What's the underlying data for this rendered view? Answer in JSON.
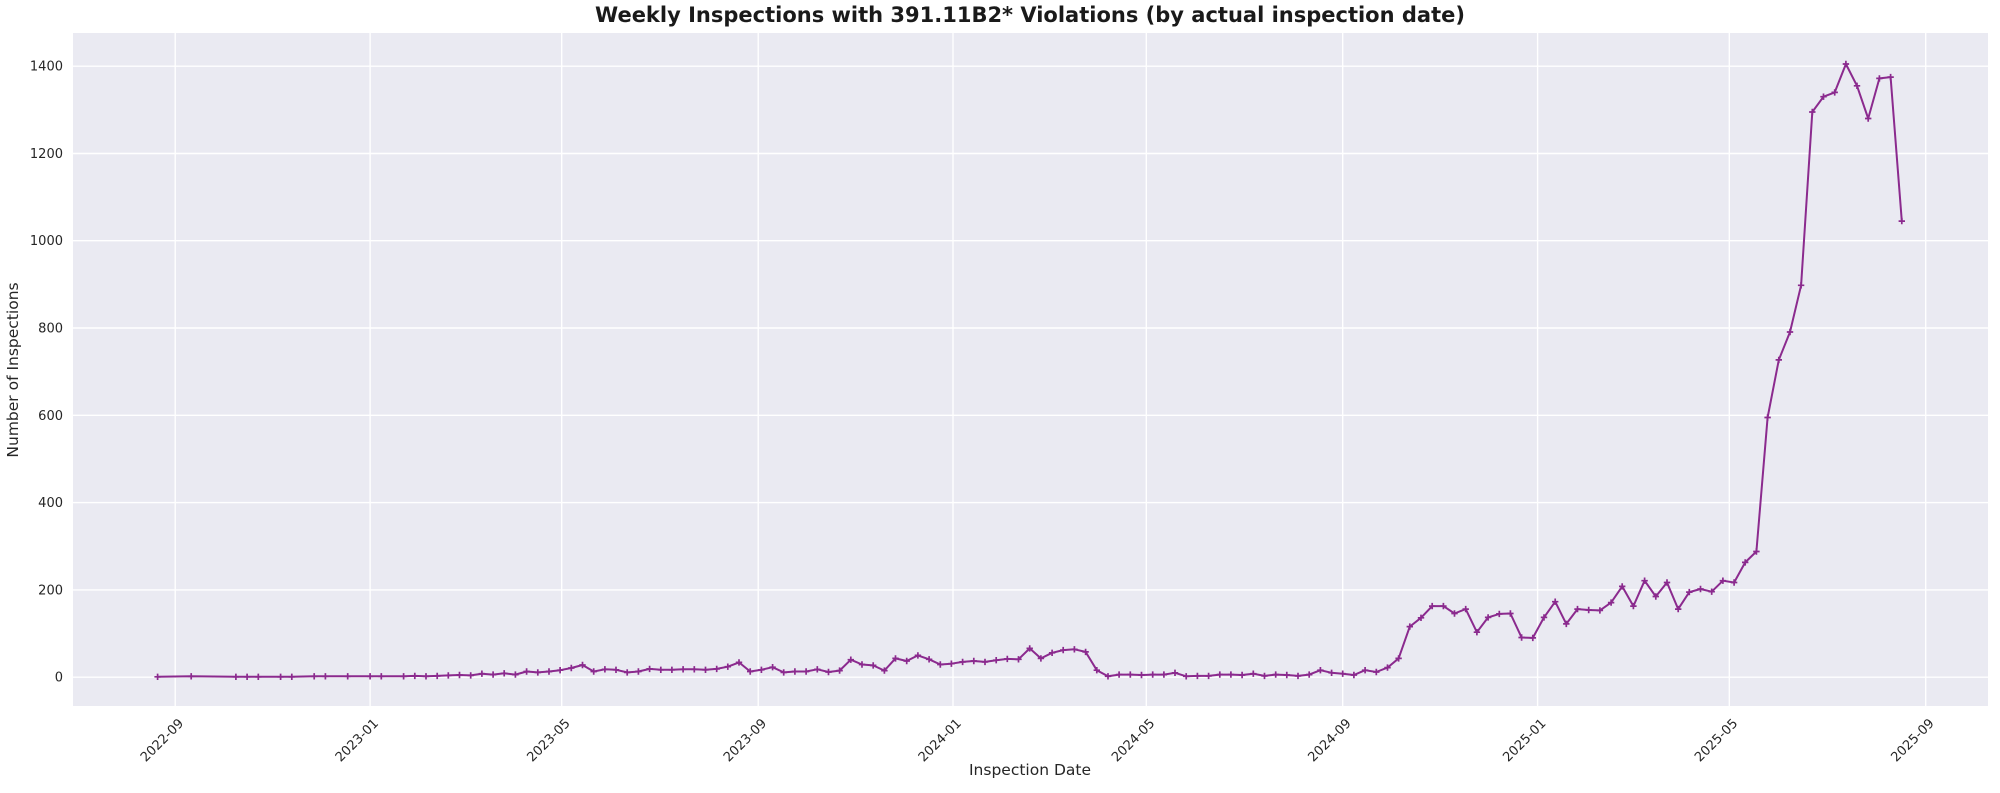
{
  "colors": {
    "figure_background": "#ffffff",
    "axes_background": "#eaeaf2",
    "gridline": "#ffffff",
    "line": "#8b2a8e",
    "marker": "#8b2a8e",
    "title_text": "#1a1a1a",
    "tick_text": "#262626"
  },
  "chart_data": {
    "type": "line",
    "title": "Weekly Inspections with 391.11B2* Violations (by actual inspection date)",
    "xlabel": "Inspection Date",
    "ylabel": "Number of Inspections",
    "grid": true,
    "legend": null,
    "marker": "plus",
    "xlim": [
      "2022-06-29",
      "2025-10-10"
    ],
    "ylim": [
      -66,
      1476
    ],
    "y_ticks": [
      0,
      200,
      400,
      600,
      800,
      1000,
      1200,
      1400
    ],
    "x_ticks": [
      {
        "date": "2022-09-01",
        "label": "2022-09"
      },
      {
        "date": "2023-01-01",
        "label": "2023-01"
      },
      {
        "date": "2023-05-01",
        "label": "2023-05"
      },
      {
        "date": "2023-09-01",
        "label": "2023-09"
      },
      {
        "date": "2024-01-01",
        "label": "2024-01"
      },
      {
        "date": "2024-05-01",
        "label": "2024-05"
      },
      {
        "date": "2024-09-01",
        "label": "2024-09"
      },
      {
        "date": "2025-01-01",
        "label": "2025-01"
      },
      {
        "date": "2025-05-01",
        "label": "2025-05"
      },
      {
        "date": "2025-09-01",
        "label": "2025-09"
      }
    ],
    "points": [
      [
        "2022-08-21",
        1
      ],
      [
        "2022-09-11",
        2
      ],
      [
        "2022-10-09",
        1
      ],
      [
        "2022-10-16",
        1
      ],
      [
        "2022-10-23",
        1
      ],
      [
        "2022-11-06",
        1
      ],
      [
        "2022-11-13",
        1
      ],
      [
        "2022-11-27",
        2
      ],
      [
        "2022-12-04",
        2
      ],
      [
        "2022-12-18",
        2
      ],
      [
        "2023-01-01",
        2
      ],
      [
        "2023-01-08",
        2
      ],
      [
        "2023-01-22",
        2
      ],
      [
        "2023-01-29",
        3
      ],
      [
        "2023-02-05",
        2
      ],
      [
        "2023-02-12",
        3
      ],
      [
        "2023-02-19",
        4
      ],
      [
        "2023-02-26",
        5
      ],
      [
        "2023-03-05",
        4
      ],
      [
        "2023-03-12",
        8
      ],
      [
        "2023-03-19",
        6
      ],
      [
        "2023-03-26",
        9
      ],
      [
        "2023-04-02",
        6
      ],
      [
        "2023-04-09",
        13
      ],
      [
        "2023-04-16",
        11
      ],
      [
        "2023-04-23",
        13
      ],
      [
        "2023-04-30",
        16
      ],
      [
        "2023-05-07",
        21
      ],
      [
        "2023-05-14",
        28
      ],
      [
        "2023-05-21",
        13
      ],
      [
        "2023-05-28",
        18
      ],
      [
        "2023-06-04",
        17
      ],
      [
        "2023-06-11",
        11
      ],
      [
        "2023-06-18",
        13
      ],
      [
        "2023-06-25",
        19
      ],
      [
        "2023-07-02",
        17
      ],
      [
        "2023-07-09",
        17
      ],
      [
        "2023-07-16",
        18
      ],
      [
        "2023-07-23",
        18
      ],
      [
        "2023-07-30",
        17
      ],
      [
        "2023-08-06",
        19
      ],
      [
        "2023-08-13",
        24
      ],
      [
        "2023-08-20",
        34
      ],
      [
        "2023-08-27",
        13
      ],
      [
        "2023-09-03",
        17
      ],
      [
        "2023-09-10",
        23
      ],
      [
        "2023-09-17",
        11
      ],
      [
        "2023-09-24",
        13
      ],
      [
        "2023-10-01",
        13
      ],
      [
        "2023-10-08",
        18
      ],
      [
        "2023-10-15",
        12
      ],
      [
        "2023-10-22",
        15
      ],
      [
        "2023-10-29",
        40
      ],
      [
        "2023-11-05",
        29
      ],
      [
        "2023-11-12",
        27
      ],
      [
        "2023-11-19",
        15
      ],
      [
        "2023-11-26",
        43
      ],
      [
        "2023-12-03",
        37
      ],
      [
        "2023-12-10",
        50
      ],
      [
        "2023-12-17",
        41
      ],
      [
        "2023-12-24",
        29
      ],
      [
        "2023-12-31",
        31
      ],
      [
        "2024-01-07",
        35
      ],
      [
        "2024-01-14",
        37
      ],
      [
        "2024-01-21",
        35
      ],
      [
        "2024-01-28",
        39
      ],
      [
        "2024-02-04",
        42
      ],
      [
        "2024-02-11",
        41
      ],
      [
        "2024-02-18",
        66
      ],
      [
        "2024-02-25",
        43
      ],
      [
        "2024-03-03",
        56
      ],
      [
        "2024-03-10",
        62
      ],
      [
        "2024-03-17",
        64
      ],
      [
        "2024-03-24",
        58
      ],
      [
        "2024-03-31",
        16
      ],
      [
        "2024-04-07",
        2
      ],
      [
        "2024-04-14",
        6
      ],
      [
        "2024-04-21",
        6
      ],
      [
        "2024-04-28",
        5
      ],
      [
        "2024-05-05",
        6
      ],
      [
        "2024-05-12",
        6
      ],
      [
        "2024-05-19",
        10
      ],
      [
        "2024-05-26",
        2
      ],
      [
        "2024-06-02",
        3
      ],
      [
        "2024-06-09",
        3
      ],
      [
        "2024-06-16",
        6
      ],
      [
        "2024-06-23",
        6
      ],
      [
        "2024-06-30",
        5
      ],
      [
        "2024-07-07",
        8
      ],
      [
        "2024-07-14",
        3
      ],
      [
        "2024-07-21",
        6
      ],
      [
        "2024-07-28",
        5
      ],
      [
        "2024-08-04",
        3
      ],
      [
        "2024-08-11",
        6
      ],
      [
        "2024-08-18",
        16
      ],
      [
        "2024-08-25",
        10
      ],
      [
        "2024-09-01",
        8
      ],
      [
        "2024-09-08",
        5
      ],
      [
        "2024-09-15",
        16
      ],
      [
        "2024-09-22",
        12
      ],
      [
        "2024-09-29",
        22
      ],
      [
        "2024-10-06",
        43
      ],
      [
        "2024-10-13",
        116
      ],
      [
        "2024-10-20",
        136
      ],
      [
        "2024-10-27",
        163
      ],
      [
        "2024-11-03",
        163
      ],
      [
        "2024-11-10",
        146
      ],
      [
        "2024-11-17",
        156
      ],
      [
        "2024-11-24",
        103
      ],
      [
        "2024-12-01",
        137
      ],
      [
        "2024-12-08",
        145
      ],
      [
        "2024-12-15",
        146
      ],
      [
        "2024-12-22",
        91
      ],
      [
        "2024-12-29",
        90
      ],
      [
        "2025-01-05",
        137
      ],
      [
        "2025-01-12",
        173
      ],
      [
        "2025-01-19",
        122
      ],
      [
        "2025-01-26",
        156
      ],
      [
        "2025-02-02",
        154
      ],
      [
        "2025-02-09",
        153
      ],
      [
        "2025-02-16",
        171
      ],
      [
        "2025-02-23",
        208
      ],
      [
        "2025-03-02",
        163
      ],
      [
        "2025-03-09",
        221
      ],
      [
        "2025-03-16",
        185
      ],
      [
        "2025-03-23",
        217
      ],
      [
        "2025-03-30",
        156
      ],
      [
        "2025-04-06",
        195
      ],
      [
        "2025-04-13",
        202
      ],
      [
        "2025-04-20",
        196
      ],
      [
        "2025-04-27",
        221
      ],
      [
        "2025-05-04",
        217
      ],
      [
        "2025-05-11",
        263
      ],
      [
        "2025-05-18",
        288
      ],
      [
        "2025-05-25",
        595
      ],
      [
        "2025-06-01",
        727
      ],
      [
        "2025-06-08",
        791
      ],
      [
        "2025-06-15",
        898
      ],
      [
        "2025-06-22",
        1295
      ],
      [
        "2025-06-29",
        1330
      ],
      [
        "2025-07-06",
        1340
      ],
      [
        "2025-07-13",
        1405
      ],
      [
        "2025-07-20",
        1355
      ],
      [
        "2025-07-27",
        1280
      ],
      [
        "2025-08-03",
        1372
      ],
      [
        "2025-08-10",
        1375
      ],
      [
        "2025-08-17",
        1045
      ]
    ]
  }
}
